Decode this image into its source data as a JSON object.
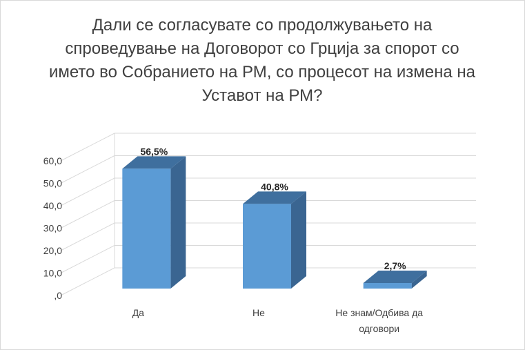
{
  "chart_data": {
    "type": "bar",
    "title": "Дали се согласувате со продолжувањето на спроведување на Договорот со Грција за спорот со името во Собранието на РМ, со процесот на измена на Уставот на РМ?",
    "categories": [
      "Да",
      "Не",
      "Не знам/Одбива да одговори"
    ],
    "category_lines": [
      [
        "Да"
      ],
      [
        "Не"
      ],
      [
        "Не знам/Одбива да",
        "одговори"
      ]
    ],
    "values": [
      56.5,
      40.8,
      2.7
    ],
    "data_labels": [
      "56,5%",
      "40,8%",
      "2,7%"
    ],
    "y_ticks": [
      ",0",
      "10,0",
      "20,0",
      "30,0",
      "40,0",
      "50,0",
      "60,0"
    ],
    "ylim": [
      0,
      60
    ],
    "grid": true,
    "legend": "none",
    "bar_color": "#5b9bd5",
    "bar_top_color": "#3f6f9e",
    "bar_side_color": "#3a6591",
    "grid_color": "#d9d9d9",
    "text_color": "#404040"
  }
}
